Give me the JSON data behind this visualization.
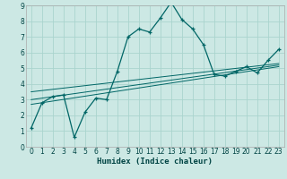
{
  "xlabel": "Humidex (Indice chaleur)",
  "bg_color": "#cce8e4",
  "grid_color": "#aad4ce",
  "line_color": "#006666",
  "xlim": [
    -0.5,
    23.5
  ],
  "ylim": [
    0,
    9
  ],
  "xticks": [
    0,
    1,
    2,
    3,
    4,
    5,
    6,
    7,
    8,
    9,
    10,
    11,
    12,
    13,
    14,
    15,
    16,
    17,
    18,
    19,
    20,
    21,
    22,
    23
  ],
  "yticks": [
    0,
    1,
    2,
    3,
    4,
    5,
    6,
    7,
    8,
    9
  ],
  "main_x": [
    0,
    1,
    2,
    3,
    4,
    5,
    6,
    7,
    8,
    9,
    10,
    11,
    12,
    13,
    14,
    15,
    16,
    17,
    18,
    19,
    20,
    21,
    22,
    23
  ],
  "main_y": [
    1.2,
    2.8,
    3.2,
    3.3,
    0.6,
    2.2,
    3.1,
    3.0,
    4.8,
    7.0,
    7.5,
    7.3,
    8.2,
    9.2,
    8.1,
    7.5,
    6.5,
    4.6,
    4.5,
    4.8,
    5.1,
    4.7,
    5.5,
    6.2
  ],
  "line1_x": [
    0,
    23
  ],
  "line1_y": [
    2.7,
    5.1
  ],
  "line2_x": [
    0,
    23
  ],
  "line2_y": [
    3.0,
    5.2
  ],
  "line3_x": [
    0,
    23
  ],
  "line3_y": [
    3.5,
    5.3
  ]
}
